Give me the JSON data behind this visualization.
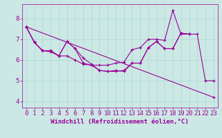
{
  "xlabel": "Windchill (Refroidissement éolien,°C)",
  "background_color": "#cce8e4",
  "line_color": "#990099",
  "xlim": [
    -0.5,
    23.5
  ],
  "ylim": [
    3.7,
    8.7
  ],
  "xticks": [
    0,
    1,
    2,
    3,
    4,
    5,
    6,
    7,
    8,
    9,
    10,
    11,
    12,
    13,
    14,
    15,
    16,
    17,
    18,
    19,
    20,
    21,
    22,
    23
  ],
  "yticks": [
    4,
    5,
    6,
    7,
    8
  ],
  "series": [
    {
      "x": [
        0,
        1,
        2,
        3,
        4,
        5,
        6,
        7,
        8,
        9,
        10,
        11,
        12,
        13,
        14,
        15,
        16,
        17,
        18,
        19,
        20,
        21,
        22,
        23
      ],
      "y": [
        7.6,
        6.85,
        6.45,
        6.4,
        6.2,
        6.9,
        6.55,
        5.85,
        5.75,
        5.75,
        5.75,
        5.85,
        5.9,
        6.5,
        6.6,
        7.0,
        7.0,
        6.95,
        8.4,
        7.25,
        7.25,
        7.25,
        5.0,
        5.0
      ]
    },
    {
      "x": [
        0,
        1,
        2,
        3,
        4,
        5,
        6,
        7,
        8,
        9,
        10,
        11,
        12,
        13,
        14,
        15,
        16,
        17,
        18,
        19,
        20
      ],
      "y": [
        7.6,
        6.85,
        6.45,
        6.45,
        6.2,
        6.9,
        6.55,
        6.1,
        5.8,
        5.5,
        5.45,
        5.5,
        5.45,
        5.85,
        5.85,
        6.6,
        6.9,
        6.55,
        6.55,
        7.3,
        7.25
      ]
    },
    {
      "x": [
        0,
        1,
        2,
        3,
        4,
        5,
        6,
        7,
        8,
        9,
        10,
        11,
        12,
        13,
        14,
        15,
        16,
        17,
        18,
        19,
        20
      ],
      "y": [
        7.6,
        6.85,
        6.45,
        6.45,
        6.2,
        6.2,
        6.0,
        5.8,
        5.75,
        5.5,
        5.45,
        5.45,
        5.5,
        5.85,
        5.85,
        6.6,
        6.9,
        6.55,
        6.55,
        7.3,
        7.25
      ]
    },
    {
      "x": [
        0,
        23
      ],
      "y": [
        7.6,
        4.2
      ]
    }
  ],
  "grid_color": "#aad8d4",
  "font_color": "#990099",
  "font_size": 6.5
}
